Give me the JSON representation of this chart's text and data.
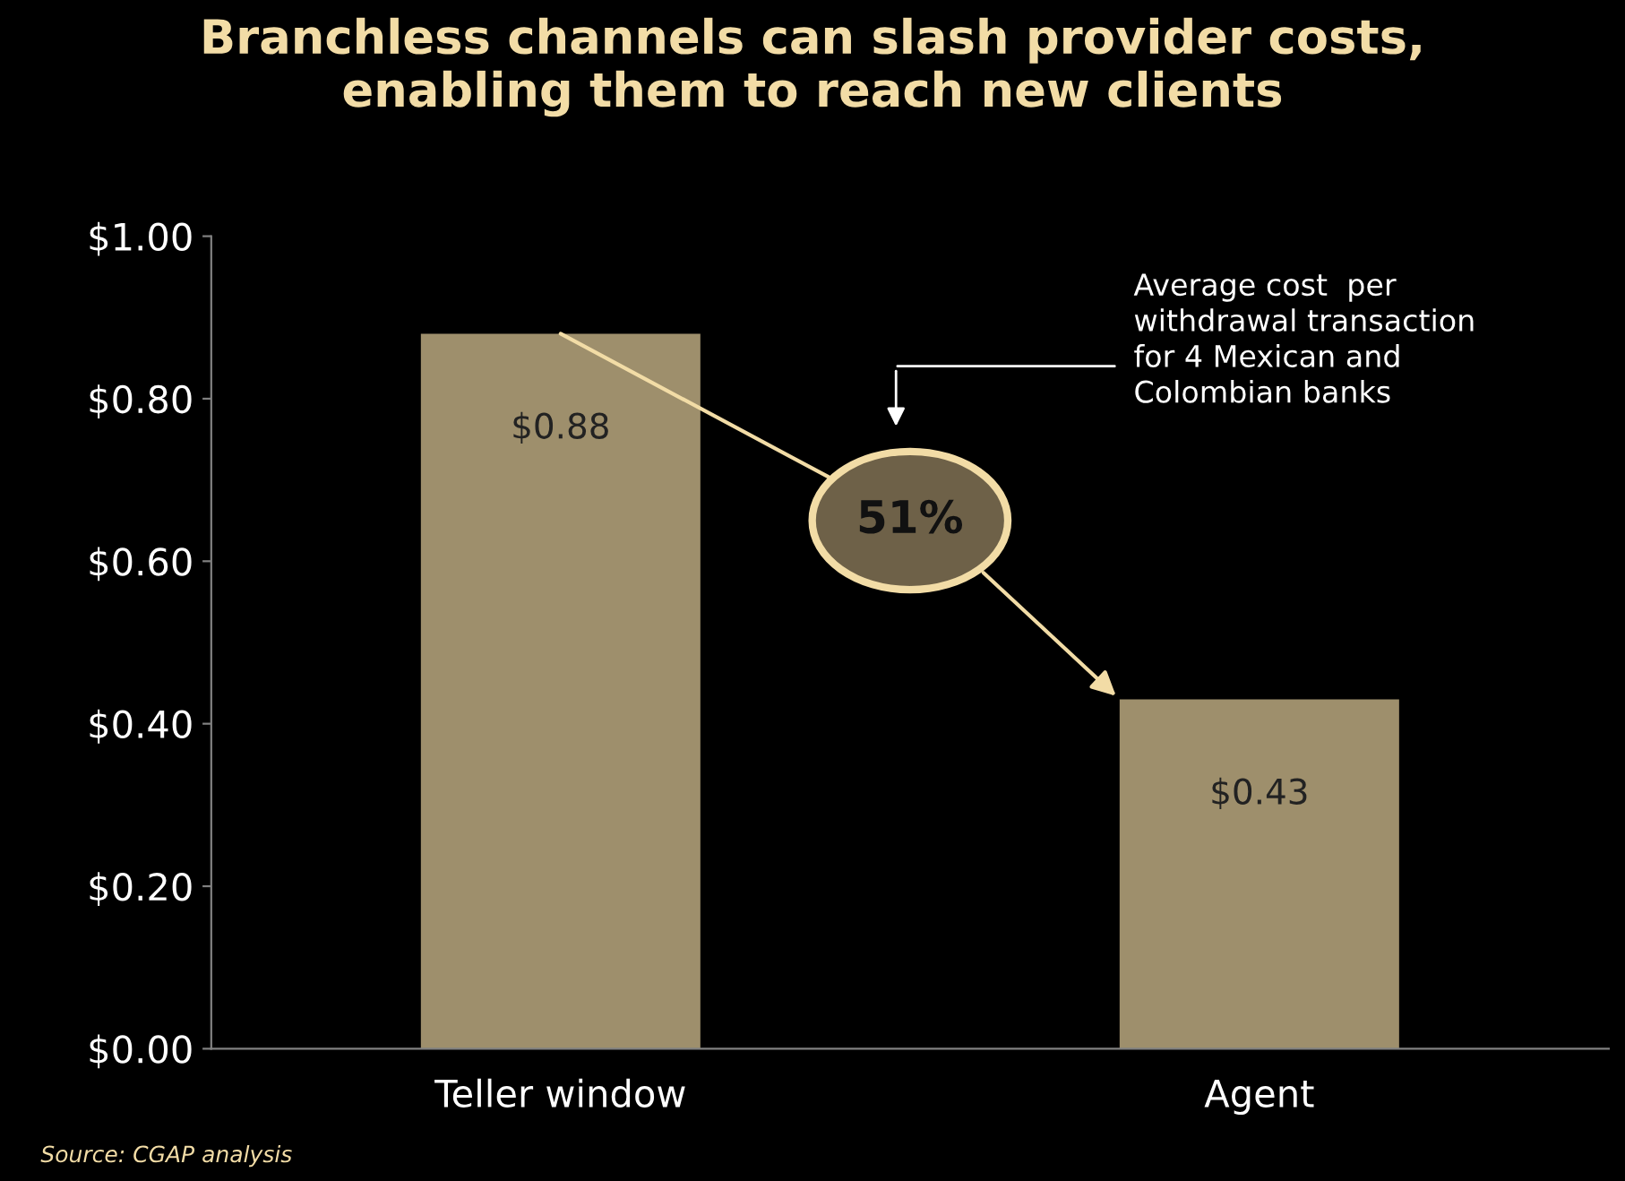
{
  "chart_data": {
    "type": "bar",
    "title": "Branchless channels can slash provider costs,\nenabling them to reach new clients",
    "categories": [
      "Teller window",
      "Agent"
    ],
    "values": [
      0.88,
      0.43
    ],
    "value_labels": [
      "$0.88",
      "$0.43"
    ],
    "color": "#9e8f6c",
    "ylim": [
      0,
      1
    ],
    "yticks": [
      {
        "value": 0,
        "label": "$0.00"
      },
      {
        "value": 0.2,
        "label": "$0.20"
      },
      {
        "value": 0.4,
        "label": "$0.40"
      },
      {
        "value": 0.6,
        "label": "$0.60"
      },
      {
        "value": 0.8,
        "label": "$0.80"
      },
      {
        "value": 1,
        "label": "$1.00"
      }
    ],
    "grid": false,
    "annotations": [
      {
        "text": "51%",
        "x": "Teller window",
        "y": 0.88
      },
      "Average cost  per\nwithdrawal transaction\nfor 4 Mexican and\nColombian banks",
      "Source: CGAP analysis"
    ]
  }
}
